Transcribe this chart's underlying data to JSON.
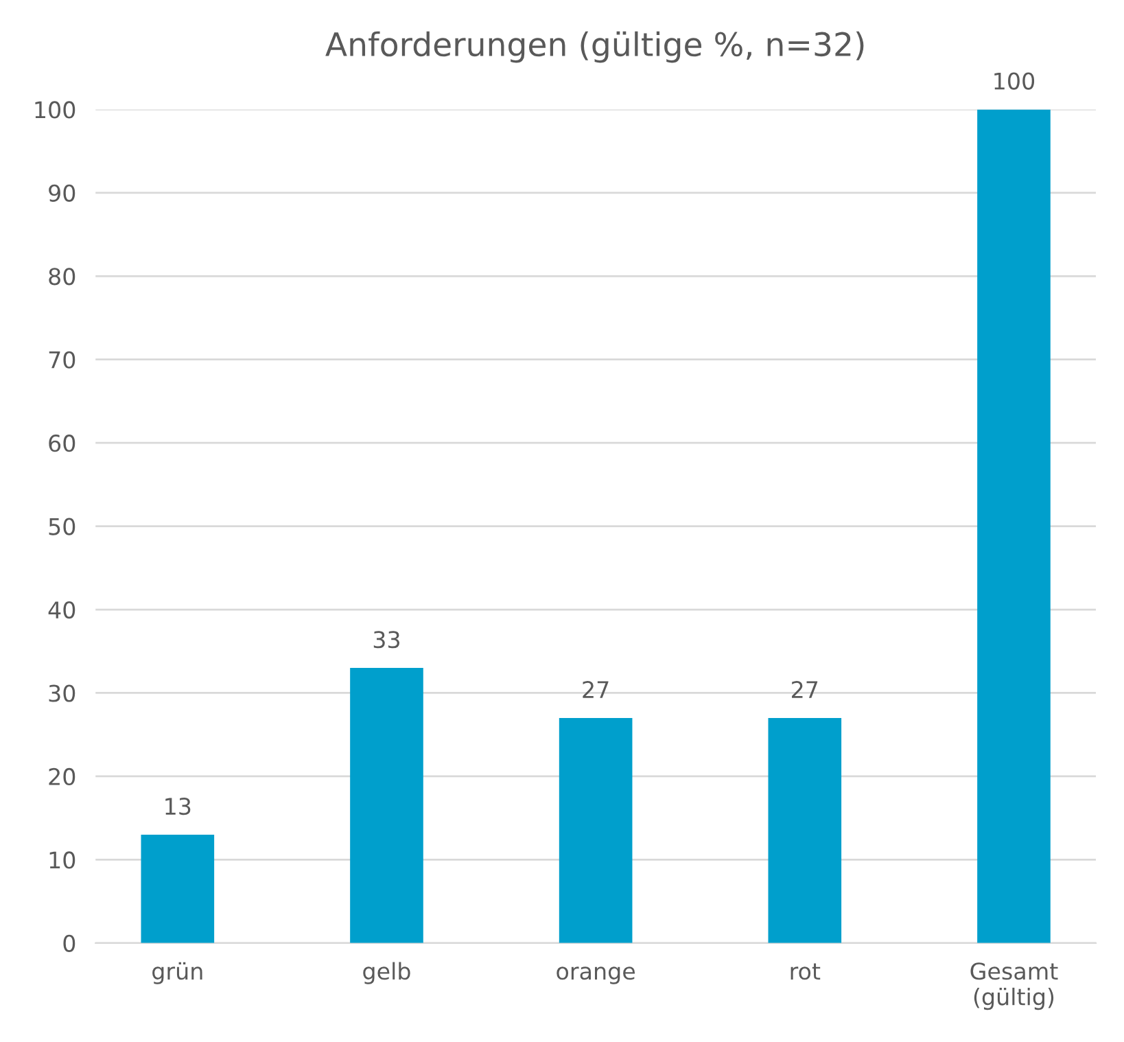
{
  "chart_data": {
    "type": "bar",
    "title": "Anforderungen (gültige %, n=32)",
    "categories": [
      "grün",
      "gelb",
      "orange",
      "rot",
      "Gesamt\n(gültig)"
    ],
    "values": [
      13,
      33,
      27,
      27,
      100
    ],
    "color": "#009fcc",
    "ylim": [
      0,
      100
    ],
    "yticks": [
      0,
      10,
      20,
      30,
      40,
      50,
      60,
      70,
      80,
      90,
      100
    ],
    "grid": "y",
    "data_labels": true
  }
}
